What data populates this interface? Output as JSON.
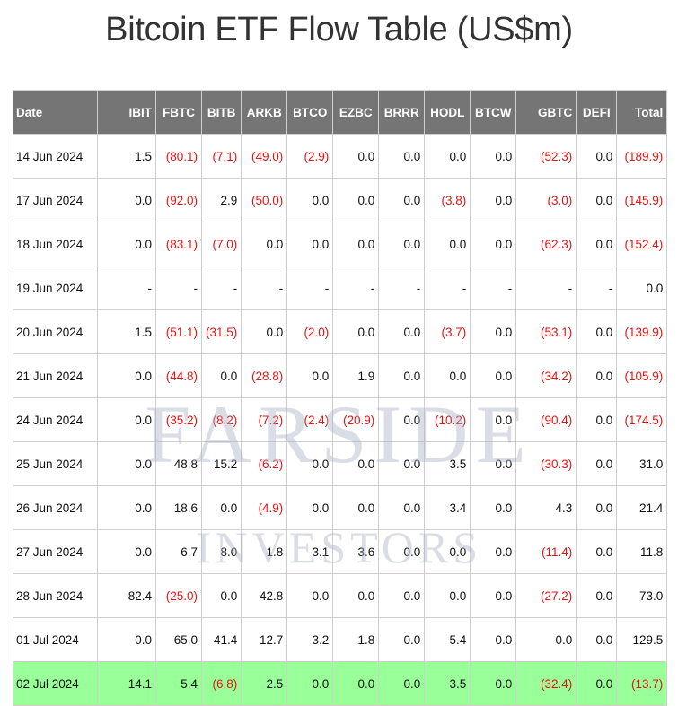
{
  "title": "Bitcoin ETF Flow Table (US$m)",
  "watermark": {
    "line1": "FARSIDE",
    "line2": "INVESTORS"
  },
  "colors": {
    "header_bg": "#757575",
    "negative": "#e81212",
    "highlight_row": "#99ff99"
  },
  "columns": [
    "Date",
    "IBIT",
    "FBTC",
    "BITB",
    "ARKB",
    "BTCO",
    "EZBC",
    "BRRR",
    "HODL",
    "BTCW",
    "GBTC",
    "DEFI",
    "Total"
  ],
  "rows": [
    [
      "14 Jun 2024",
      "1.5",
      "(80.1)",
      "(7.1)",
      "(49.0)",
      "(2.9)",
      "0.0",
      "0.0",
      "0.0",
      "0.0",
      "(52.3)",
      "0.0",
      "(189.9)"
    ],
    [
      "17 Jun 2024",
      "0.0",
      "(92.0)",
      "2.9",
      "(50.0)",
      "0.0",
      "0.0",
      "0.0",
      "(3.8)",
      "0.0",
      "(3.0)",
      "0.0",
      "(145.9)"
    ],
    [
      "18 Jun 2024",
      "0.0",
      "(83.1)",
      "(7.0)",
      "0.0",
      "0.0",
      "0.0",
      "0.0",
      "0.0",
      "0.0",
      "(62.3)",
      "0.0",
      "(152.4)"
    ],
    [
      "19 Jun 2024",
      "-",
      "-",
      "-",
      "-",
      "-",
      "-",
      "-",
      "-",
      "-",
      "-",
      "-",
      "0.0"
    ],
    [
      "20 Jun 2024",
      "1.5",
      "(51.1)",
      "(31.5)",
      "0.0",
      "(2.0)",
      "0.0",
      "0.0",
      "(3.7)",
      "0.0",
      "(53.1)",
      "0.0",
      "(139.9)"
    ],
    [
      "21 Jun 2024",
      "0.0",
      "(44.8)",
      "0.0",
      "(28.8)",
      "0.0",
      "1.9",
      "0.0",
      "0.0",
      "0.0",
      "(34.2)",
      "0.0",
      "(105.9)"
    ],
    [
      "24 Jun 2024",
      "0.0",
      "(35.2)",
      "(8.2)",
      "(7.2)",
      "(2.4)",
      "(20.9)",
      "0.0",
      "(10.2)",
      "0.0",
      "(90.4)",
      "0.0",
      "(174.5)"
    ],
    [
      "25 Jun 2024",
      "0.0",
      "48.8",
      "15.2",
      "(6.2)",
      "0.0",
      "0.0",
      "0.0",
      "3.5",
      "0.0",
      "(30.3)",
      "0.0",
      "31.0"
    ],
    [
      "26 Jun 2024",
      "0.0",
      "18.6",
      "0.0",
      "(4.9)",
      "0.0",
      "0.0",
      "0.0",
      "3.4",
      "0.0",
      "4.3",
      "0.0",
      "21.4"
    ],
    [
      "27 Jun 2024",
      "0.0",
      "6.7",
      "8.0",
      "1.8",
      "3.1",
      "3.6",
      "0.0",
      "0.0",
      "0.0",
      "(11.4)",
      "0.0",
      "11.8"
    ],
    [
      "28 Jun 2024",
      "82.4",
      "(25.0)",
      "0.0",
      "42.8",
      "0.0",
      "0.0",
      "0.0",
      "0.0",
      "0.0",
      "(27.2)",
      "0.0",
      "73.0"
    ],
    [
      "01 Jul 2024",
      "0.0",
      "65.0",
      "41.4",
      "12.7",
      "3.2",
      "1.8",
      "0.0",
      "5.4",
      "0.0",
      "0.0",
      "0.0",
      "129.5"
    ],
    [
      "02 Jul 2024",
      "14.1",
      "5.4",
      "(6.8)",
      "2.5",
      "0.0",
      "0.0",
      "0.0",
      "3.5",
      "0.0",
      "(32.4)",
      "0.0",
      "(13.7)"
    ]
  ]
}
